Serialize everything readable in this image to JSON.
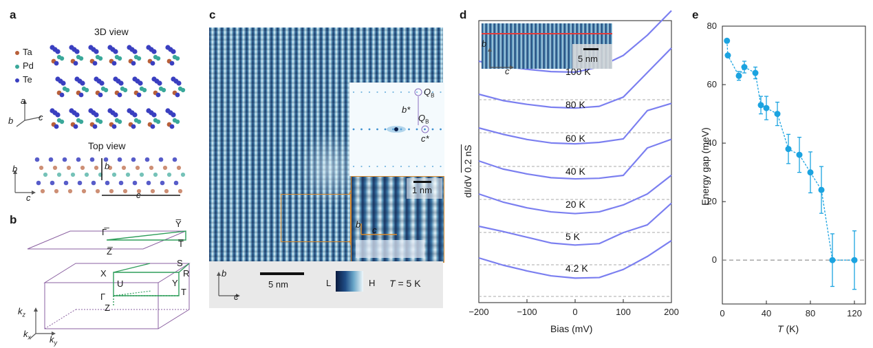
{
  "panels": {
    "a": {
      "label": "a",
      "view3d_title": "3D view",
      "topview_title": "Top view",
      "legend": [
        {
          "name": "Ta",
          "color": "#b8603a"
        },
        {
          "name": "Pd",
          "color": "#3aa89a"
        },
        {
          "name": "Te",
          "color": "#3a3fc0"
        }
      ],
      "axes3d": {
        "a": "a",
        "b": "b",
        "c": "c"
      },
      "axes_top": {
        "b": "b",
        "c": "c"
      },
      "cell_b": "b",
      "cell_c": "c"
    },
    "b": {
      "label": "b",
      "bz2d": {
        "gamma": "Γ̅",
        "y": "Y̅",
        "t": "T̅",
        "z": "Z̅"
      },
      "bz3d": {
        "x": "X",
        "s": "S",
        "u": "U",
        "r": "R",
        "y": "Y",
        "gamma": "Γ",
        "t": "T",
        "z": "Z"
      },
      "axes": {
        "kz": "k",
        "kz_sub": "z",
        "kx": "k",
        "kx_sub": "x",
        "ky": "k",
        "ky_sub": "y"
      }
    },
    "c": {
      "label": "c",
      "fft": {
        "qb_top": "Q",
        "qb_top_sub": "B",
        "qb_right": "Q",
        "qb_right_sub": "B",
        "bstar": "b*",
        "cstar": "c*"
      },
      "zoom": {
        "scale": "1 nm",
        "b": "b",
        "c": "c"
      },
      "scalebar": "5 nm",
      "axes": {
        "b": "b",
        "c": "c"
      },
      "colorbar": {
        "low": "L",
        "high": "H"
      },
      "temperature": {
        "symbol": "T",
        "value": " = 5 K"
      }
    },
    "d": {
      "label": "d",
      "ylabel": "dI/dV",
      "yscale": "0.2 nS",
      "xlabel": "Bias (mV)",
      "inset": {
        "b": "b",
        "c": "c",
        "scale": "5 nm"
      },
      "curve_labels": [
        "100 K",
        "80 K",
        "60 K",
        "40 K",
        "20 K",
        "5 K",
        "4.2 K"
      ]
    },
    "e": {
      "label": "e",
      "ylabel": "Energy gap (meV)",
      "xlabel_symbol": "T",
      "xlabel_unit": " (K)"
    }
  },
  "chart_data": [
    {
      "type": "line",
      "panel": "d",
      "title": "",
      "xlabel": "Bias (mV)",
      "ylabel": "dI/dV (offset)",
      "xlim": [
        -200,
        200
      ],
      "xticks": [
        -200,
        -100,
        0,
        100,
        200
      ],
      "series": [
        {
          "name": "100 K",
          "x": [
            -200,
            -150,
            -100,
            -50,
            0,
            50,
            100,
            150,
            200
          ],
          "y": [
            1.0,
            0.82,
            0.72,
            0.64,
            0.62,
            0.8,
            1.2,
            1.9,
            2.75
          ]
        },
        {
          "name": "80 K",
          "x": [
            -200,
            -150,
            -100,
            -50,
            0,
            50,
            100,
            150,
            200
          ],
          "y": [
            1.0,
            0.78,
            0.65,
            0.55,
            0.52,
            0.58,
            0.9,
            1.75,
            2.6
          ]
        },
        {
          "name": "60 K",
          "x": [
            -200,
            -150,
            -100,
            -50,
            0,
            50,
            100,
            150,
            200
          ],
          "y": [
            1.0,
            0.78,
            0.6,
            0.48,
            0.45,
            0.5,
            0.62,
            1.6,
            1.85
          ]
        },
        {
          "name": "40 K",
          "x": [
            -200,
            -150,
            -100,
            -50,
            0,
            50,
            100,
            150,
            200
          ],
          "y": [
            1.0,
            0.72,
            0.55,
            0.42,
            0.38,
            0.4,
            0.5,
            1.45,
            1.75
          ]
        },
        {
          "name": "20 K",
          "x": [
            -200,
            -150,
            -100,
            -50,
            0,
            50,
            100,
            150,
            200
          ],
          "y": [
            1.0,
            0.72,
            0.52,
            0.38,
            0.32,
            0.38,
            0.62,
            1.0,
            1.65
          ]
        },
        {
          "name": "5 K",
          "x": [
            -200,
            -150,
            -100,
            -50,
            0,
            50,
            100,
            150,
            200
          ],
          "y": [
            1.0,
            0.82,
            0.62,
            0.42,
            0.35,
            0.4,
            0.78,
            1.05,
            1.8
          ]
        },
        {
          "name": "4.2 K",
          "x": [
            -200,
            -150,
            -100,
            -50,
            0,
            50,
            100,
            150,
            200
          ],
          "y": [
            1.0,
            0.75,
            0.55,
            0.38,
            0.3,
            0.32,
            0.6,
            1.05,
            1.6
          ]
        }
      ]
    },
    {
      "type": "scatter",
      "panel": "e",
      "title": "",
      "xlabel": "T (K)",
      "ylabel": "Energy gap (meV)",
      "xlim": [
        0,
        130
      ],
      "ylim": [
        -15,
        80
      ],
      "xticks": [
        0,
        40,
        80,
        120
      ],
      "yticks": [
        0,
        20,
        40,
        60,
        80
      ],
      "reference_line_y": 0,
      "series": [
        {
          "name": "Energy gap",
          "x": [
            4.2,
            5,
            15,
            20,
            30,
            35,
            40,
            50,
            60,
            70,
            80,
            90,
            100,
            120
          ],
          "y": [
            75,
            70,
            63,
            66,
            64,
            53,
            52,
            50,
            38,
            36,
            30,
            24,
            0,
            0
          ],
          "error": [
            0,
            0,
            1.5,
            2,
            2,
            3,
            4,
            4,
            5,
            6,
            7,
            8,
            9,
            10
          ]
        }
      ]
    }
  ]
}
